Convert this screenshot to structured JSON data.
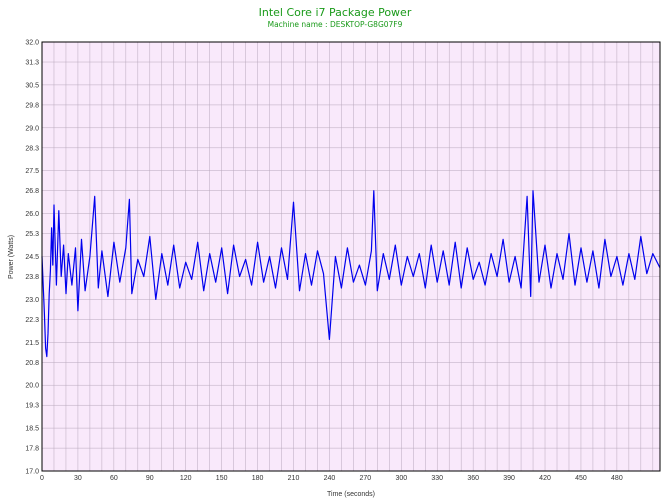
{
  "chart_data": {
    "type": "line",
    "title": "Intel Core i7 Package Power",
    "subtitle": "Machine name : DESKTOP-G8G07F9",
    "xlabel": "Time (seconds)",
    "ylabel": "Power (Watts)",
    "xlim": [
      0,
      516
    ],
    "ylim": [
      17.0,
      32.0
    ],
    "x_ticks": [
      0,
      30,
      60,
      90,
      120,
      150,
      180,
      210,
      240,
      270,
      300,
      330,
      360,
      390,
      420,
      450,
      480
    ],
    "y_ticks": [
      "17.0",
      "17.8",
      "18.5",
      "19.3",
      "20.0",
      "20.8",
      "21.5",
      "22.3",
      "23.0",
      "23.8",
      "24.5",
      "25.3",
      "26.0",
      "26.8",
      "27.5",
      "28.3",
      "29.0",
      "29.8",
      "30.5",
      "31.3",
      "32.0"
    ],
    "grid": true,
    "colors": {
      "plot_bg": "#f9e9fb",
      "grid": "#b8a8bc",
      "line": "#0000ee",
      "title": "#1a9a1a"
    },
    "series": [
      {
        "x": [
          0,
          2,
          3,
          4,
          5,
          6,
          7,
          8,
          9,
          10,
          12,
          14,
          16,
          18,
          20,
          22,
          25,
          28,
          30,
          33,
          36,
          40,
          44,
          47,
          50,
          55,
          60,
          65,
          70,
          73,
          75,
          80,
          85,
          90,
          95,
          100,
          105,
          110,
          115,
          120,
          125,
          130,
          135,
          140,
          145,
          150,
          155,
          160,
          165,
          170,
          175,
          180,
          185,
          190,
          195,
          200,
          205,
          210,
          215,
          220,
          225,
          230,
          235,
          240,
          245,
          250,
          255,
          260,
          265,
          270,
          275,
          277,
          280,
          285,
          290,
          295,
          300,
          305,
          310,
          315,
          320,
          325,
          330,
          335,
          340,
          345,
          350,
          355,
          360,
          365,
          370,
          375,
          380,
          385,
          390,
          395,
          400,
          405,
          408,
          410,
          415,
          420,
          425,
          430,
          435,
          440,
          445,
          450,
          455,
          460,
          465,
          470,
          475,
          480,
          485,
          490,
          495,
          500,
          505,
          510,
          516
        ],
        "y": [
          24.5,
          22.5,
          21.3,
          21.0,
          21.8,
          23.2,
          24.0,
          25.5,
          24.2,
          26.3,
          23.5,
          26.1,
          23.8,
          24.9,
          23.2,
          24.6,
          23.5,
          24.8,
          22.6,
          25.1,
          23.3,
          24.5,
          26.6,
          23.4,
          24.7,
          23.1,
          25.0,
          23.6,
          24.8,
          26.5,
          23.2,
          24.4,
          23.8,
          25.2,
          23.0,
          24.6,
          23.5,
          24.9,
          23.4,
          24.3,
          23.7,
          25.0,
          23.3,
          24.6,
          23.6,
          24.8,
          23.2,
          24.9,
          23.8,
          24.4,
          23.5,
          25.0,
          23.6,
          24.5,
          23.4,
          24.8,
          23.7,
          26.4,
          23.3,
          24.6,
          23.5,
          24.7,
          23.9,
          21.6,
          24.5,
          23.4,
          24.8,
          23.6,
          24.2,
          23.5,
          24.7,
          26.8,
          23.3,
          24.6,
          23.7,
          24.9,
          23.5,
          24.5,
          23.8,
          24.6,
          23.4,
          24.9,
          23.6,
          24.7,
          23.5,
          25.0,
          23.4,
          24.8,
          23.7,
          24.3,
          23.5,
          24.6,
          23.8,
          25.1,
          23.6,
          24.5,
          23.4,
          26.6,
          23.1,
          26.8,
          23.6,
          24.9,
          23.4,
          24.6,
          23.7,
          25.3,
          23.5,
          24.8,
          23.6,
          24.7,
          23.4,
          25.1,
          23.8,
          24.5,
          23.5,
          24.6,
          23.7,
          25.2,
          23.9,
          24.6,
          24.1
        ]
      }
    ]
  }
}
